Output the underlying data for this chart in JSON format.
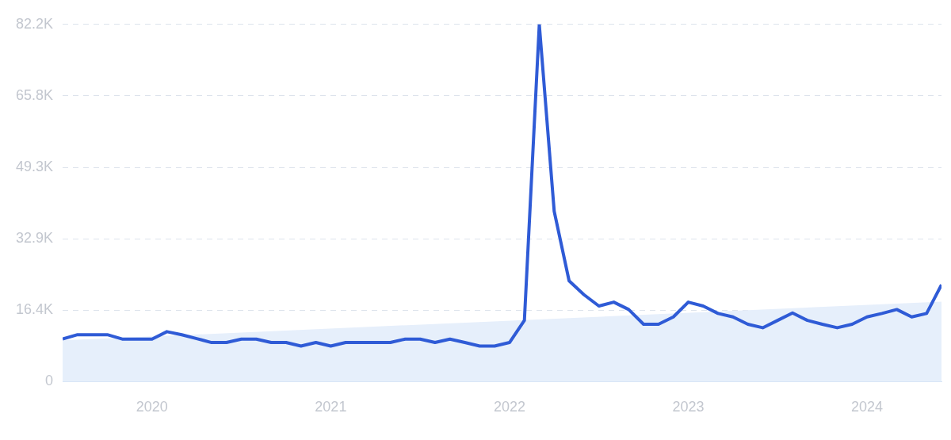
{
  "chart_data": {
    "type": "line",
    "x": [
      "2019-07",
      "2019-08",
      "2019-09",
      "2019-10",
      "2019-11",
      "2019-12",
      "2020-01",
      "2020-02",
      "2020-03",
      "2020-04",
      "2020-05",
      "2020-06",
      "2020-07",
      "2020-08",
      "2020-09",
      "2020-10",
      "2020-11",
      "2020-12",
      "2021-01",
      "2021-02",
      "2021-03",
      "2021-04",
      "2021-05",
      "2021-06",
      "2021-07",
      "2021-08",
      "2021-09",
      "2021-10",
      "2021-11",
      "2021-12",
      "2022-01",
      "2022-02",
      "2022-03",
      "2022-04",
      "2022-05",
      "2022-06",
      "2022-07",
      "2022-08",
      "2022-09",
      "2022-10",
      "2022-11",
      "2022-12",
      "2023-01",
      "2023-02",
      "2023-03",
      "2023-04",
      "2023-05",
      "2023-06",
      "2023-07",
      "2023-08",
      "2023-09",
      "2023-10",
      "2023-11",
      "2023-12",
      "2024-01",
      "2024-02",
      "2024-03",
      "2024-04",
      "2024-05",
      "2024-06"
    ],
    "series": [
      {
        "type": "area",
        "color": "#e6effb",
        "x": [
          "2019-07",
          "2024-06"
        ],
        "values": [
          9500,
          18400
        ]
      },
      {
        "type": "line",
        "color": "#2f5bd6",
        "values": [
          9800,
          10800,
          10800,
          10800,
          9800,
          9800,
          9800,
          11500,
          10800,
          9900,
          9000,
          9000,
          9800,
          9800,
          9000,
          9000,
          8200,
          9000,
          8200,
          9000,
          9000,
          9000,
          9000,
          9800,
          9800,
          9000,
          9800,
          9000,
          8200,
          8200,
          9000,
          14100,
          82200,
          39200,
          23200,
          20000,
          17400,
          18300,
          16600,
          13200,
          13200,
          14900,
          18300,
          17400,
          15700,
          14900,
          13200,
          12400,
          14100,
          15800,
          14100,
          13200,
          12400,
          13200,
          14900,
          15700,
          16600,
          14900,
          15700,
          22300
        ]
      }
    ],
    "xlim": [
      "2019-07",
      "2024-06"
    ],
    "xticks": [
      {
        "value": "2020-01",
        "label": "2020"
      },
      {
        "value": "2021-01",
        "label": "2021"
      },
      {
        "value": "2022-01",
        "label": "2022"
      },
      {
        "value": "2023-01",
        "label": "2023"
      },
      {
        "value": "2024-01",
        "label": "2024"
      }
    ],
    "ylim": [
      0,
      82200
    ],
    "yticks": [
      0,
      {
        "value": 16400,
        "label": "16.4K"
      },
      {
        "value": 32900,
        "label": "32.9K"
      },
      {
        "value": 49300,
        "label": "49.3K"
      },
      {
        "value": 65800,
        "label": "65.8K"
      },
      {
        "value": 82200,
        "label": "82.2K"
      }
    ],
    "grid": "y",
    "legend": false,
    "marker": "none",
    "line_style": "solid"
  }
}
